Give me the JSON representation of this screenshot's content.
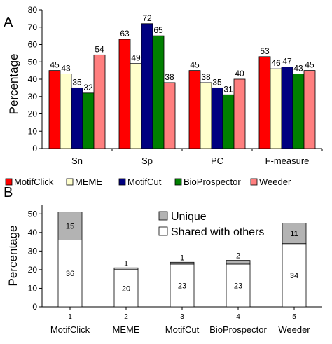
{
  "chart_data": [
    {
      "panel_label": "A",
      "type": "bar",
      "ylabel": "Percentage",
      "ylim": [
        0,
        80
      ],
      "yticks": [
        0,
        10,
        20,
        30,
        40,
        50,
        60,
        70,
        80
      ],
      "categories": [
        "Sn",
        "Sp",
        "PC",
        "F-measure"
      ],
      "series": [
        {
          "name": "MotifClick",
          "color": "#ff0000",
          "values": [
            45,
            63,
            45,
            53
          ]
        },
        {
          "name": "MEME",
          "color": "#ffffcc",
          "values": [
            43,
            49,
            38,
            46
          ]
        },
        {
          "name": "MotifCut",
          "color": "#000080",
          "values": [
            35,
            72,
            35,
            47
          ]
        },
        {
          "name": "BioProspector",
          "color": "#008000",
          "values": [
            32,
            65,
            31,
            43
          ]
        },
        {
          "name": "Weeder",
          "color": "#ff7f7f",
          "values": [
            54,
            38,
            40,
            45
          ]
        }
      ],
      "legend_position": "bottom",
      "grid": false
    },
    {
      "panel_label": "B",
      "type": "bar",
      "stacked": true,
      "ylabel": "Percentage",
      "ylim": [
        0,
        55
      ],
      "yticks": [
        0,
        10,
        20,
        30,
        40,
        50
      ],
      "x_numbers": [
        "1",
        "2",
        "3",
        "4",
        "5"
      ],
      "categories": [
        "MotifClick",
        "MEME",
        "MotifCut",
        "BioProspector",
        "Weeder"
      ],
      "series": [
        {
          "name": "Shared with others",
          "color": "#ffffff",
          "values": [
            36,
            20,
            23,
            23,
            34
          ]
        },
        {
          "name": "Unique",
          "color": "#b3b3b3",
          "values": [
            15,
            1,
            1,
            2,
            11
          ]
        }
      ],
      "legend_position": "top-right",
      "legend_order": [
        "Unique",
        "Shared with others"
      ],
      "grid": false
    }
  ]
}
